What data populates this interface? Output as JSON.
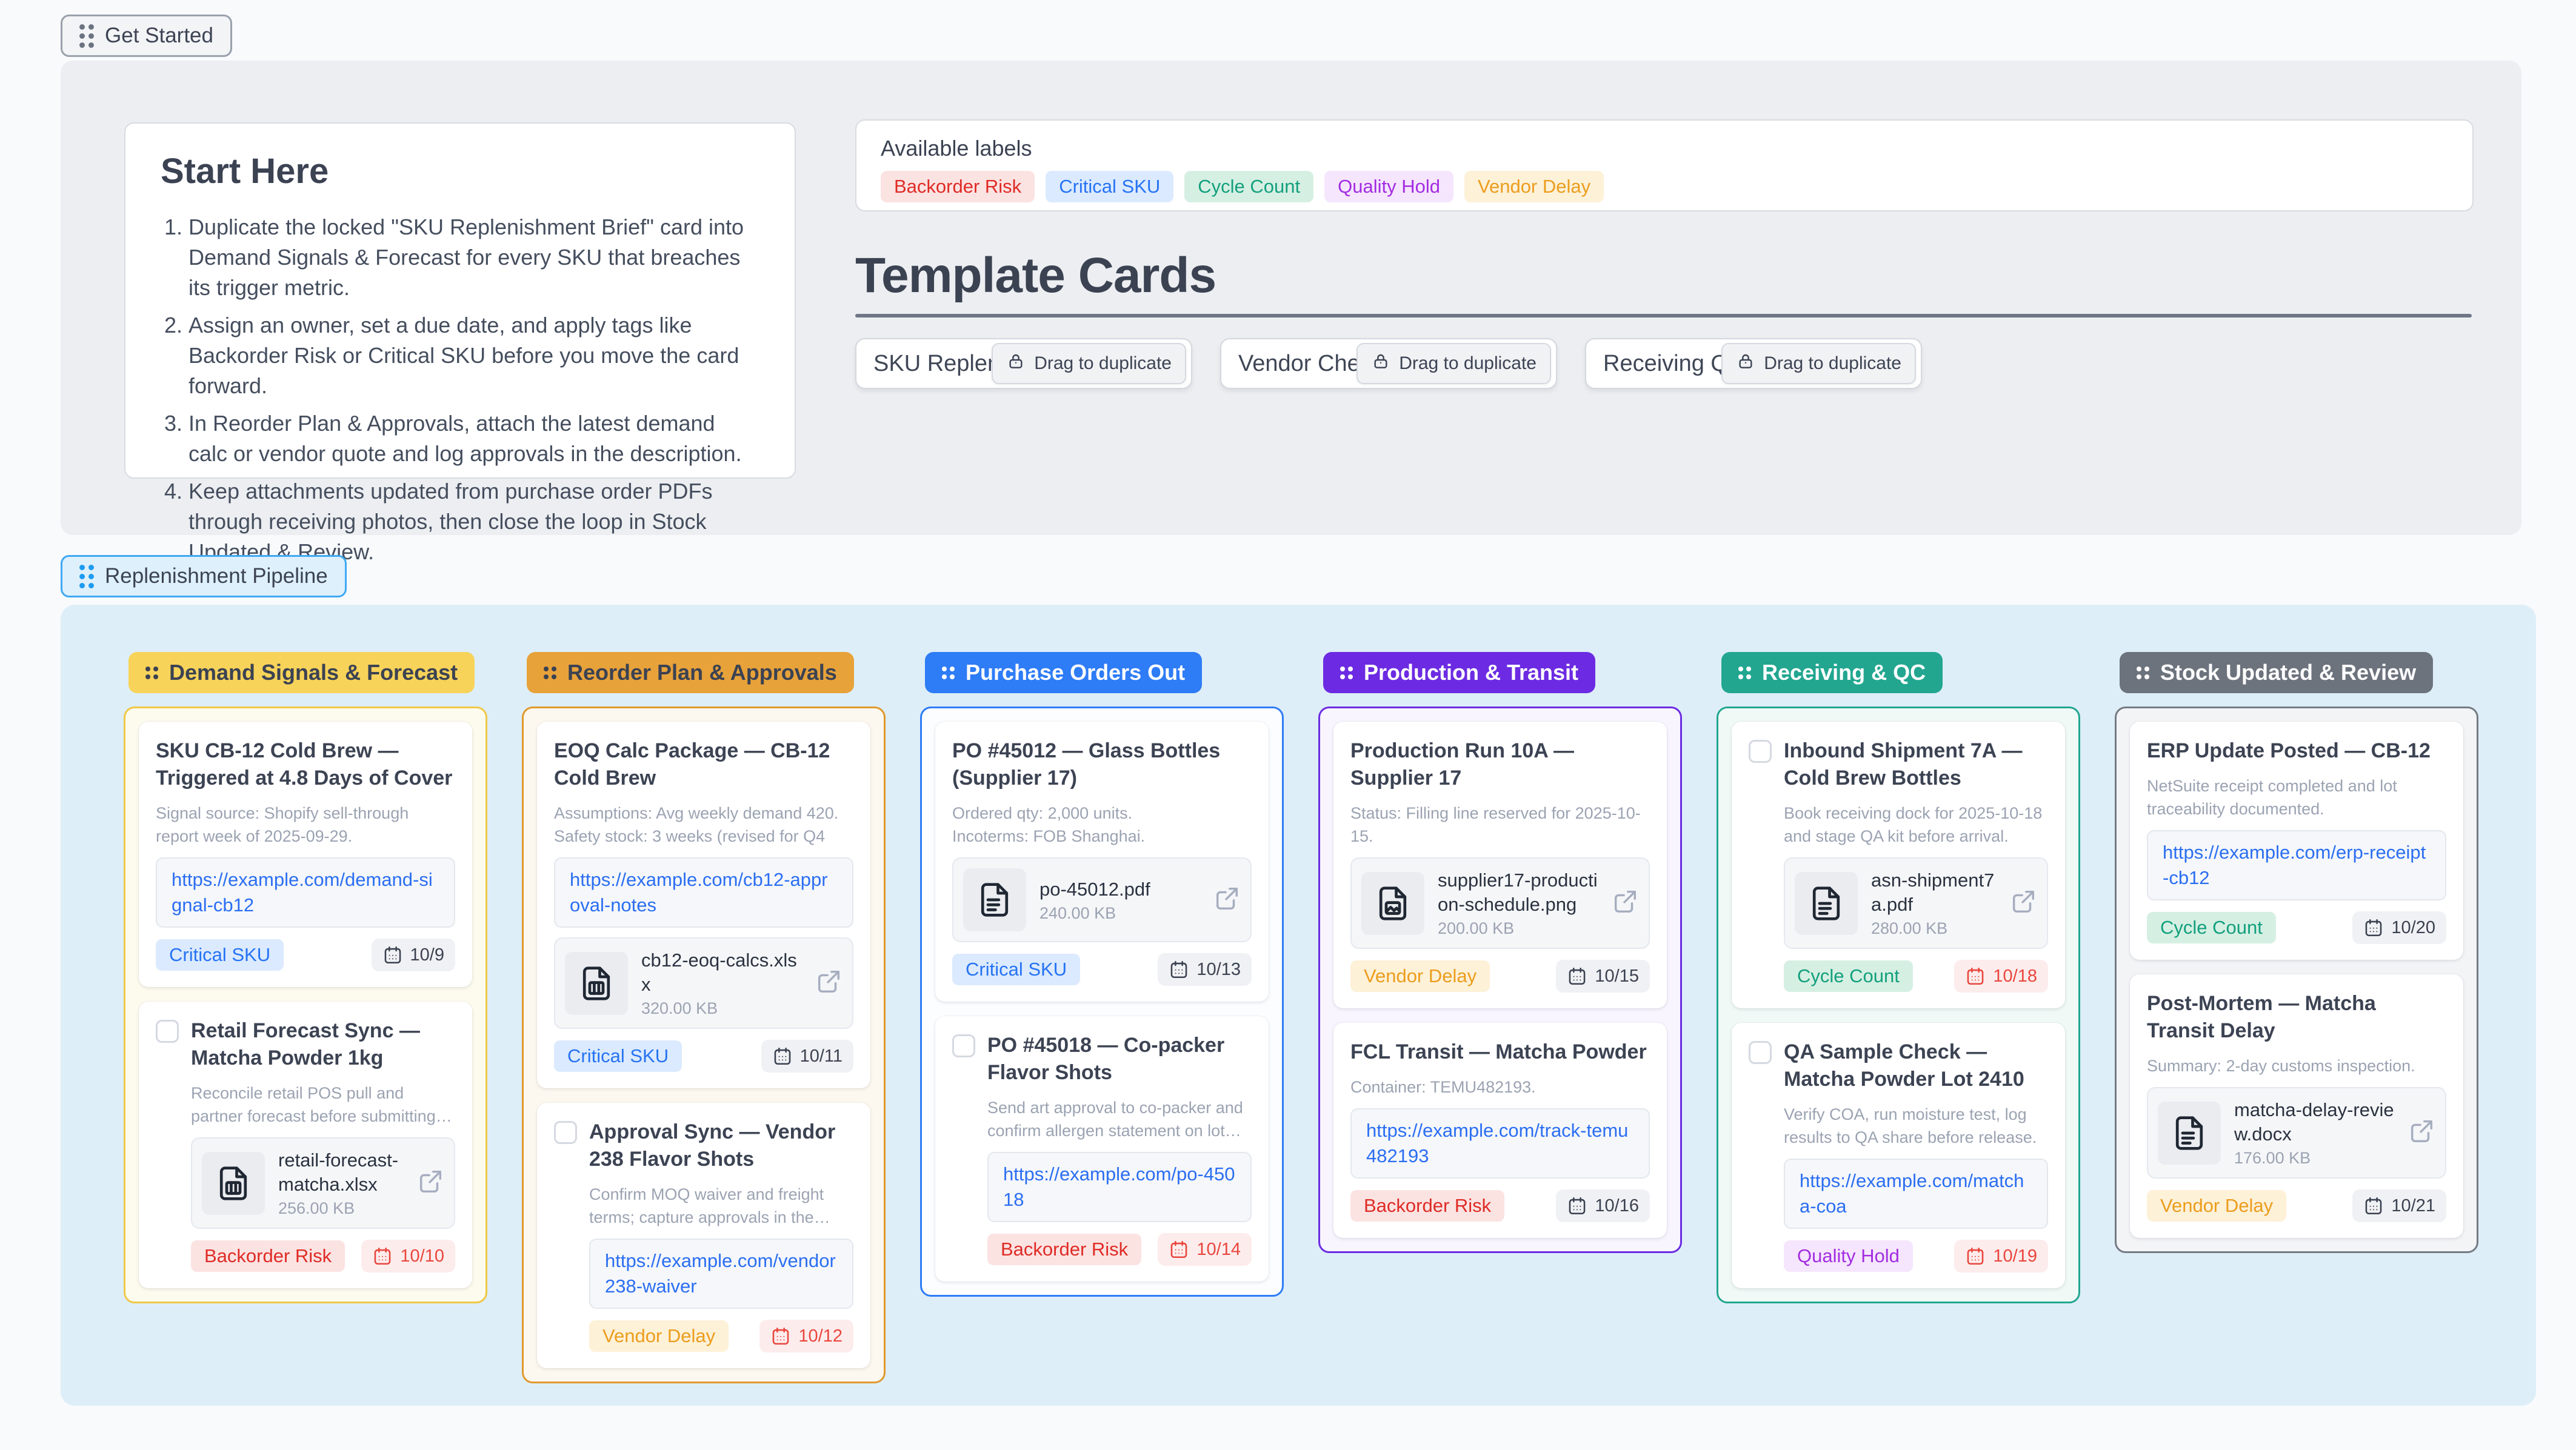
{
  "ui_colors": {
    "page_bg": "#f8fafc",
    "panel_bg": "#eceef1",
    "board_bg": "#ddeef8",
    "link": "#2b6ef2",
    "pipe_bg": "#def0fc",
    "pipe_border": "#3fa9f5"
  },
  "get_started_label": "Get Started",
  "pipeline_badge_label": "Replenishment Pipeline",
  "start_here": {
    "title": "Start Here",
    "steps": [
      "Duplicate the locked \"SKU Replenishment Brief\" card into Demand Signals & Forecast for every SKU that breaches its trigger metric.",
      "Assign an owner, set a due date, and apply tags like Backorder Risk or Critical SKU before you move the card forward.",
      "In Reorder Plan & Approvals, attach the latest demand calc or vendor quote and log approvals in the description.",
      "Keep attachments updated from purchase order PDFs through receiving photos, then close the loop in Stock Updated & Review."
    ]
  },
  "labels_panel": {
    "title": "Available labels",
    "labels": [
      {
        "name": "Backorder Risk",
        "color": "red"
      },
      {
        "name": "Critical SKU",
        "color": "blue"
      },
      {
        "name": "Cycle Count",
        "color": "teal"
      },
      {
        "name": "Quality Hold",
        "color": "purple"
      },
      {
        "name": "Vendor Delay",
        "color": "amber"
      }
    ]
  },
  "templates": {
    "title": "Template Cards",
    "drag_label": "Drag to duplicate",
    "cards": [
      {
        "title": "SKU Replenishment Brief"
      },
      {
        "title": "Vendor Check-In"
      },
      {
        "title": "Receiving QA Log"
      }
    ]
  },
  "board": {
    "columns": [
      {
        "title": "Demand Signals & Forecast",
        "theme": "yellow",
        "cards": [
          {
            "title": "SKU CB-12 Cold Brew — Triggered at 4.8 Days of Cover",
            "checkbox": false,
            "description": "Signal source: Shopify sell-through report week of 2025-09-29.",
            "link": "https://example.com/demand-signal-cb12",
            "label": {
              "name": "Critical SKU",
              "color": "blue"
            },
            "due": {
              "date": "10/9",
              "overdue": false
            }
          },
          {
            "title": "Retail Forecast Sync — Matcha Powder 1kg",
            "checkbox": true,
            "description": "Reconcile retail POS pull and partner forecast before submitting reorder calc ...",
            "attachment": {
              "name": "retail-forecast-matcha.xlsx",
              "size": "256.00 KB",
              "kind": "sheet"
            },
            "label": {
              "name": "Backorder Risk",
              "color": "red"
            },
            "due": {
              "date": "10/10",
              "overdue": true
            }
          }
        ]
      },
      {
        "title": "Reorder Plan & Approvals",
        "theme": "orange",
        "cards": [
          {
            "title": "EOQ Calc Package — CB-12 Cold Brew",
            "checkbox": false,
            "description": "Assumptions: Avg weekly demand 420. Safety stock: 3 weeks (revised for Q4",
            "link": "https://example.com/cb12-approval-notes",
            "attachment": {
              "name": "cb12-eoq-calcs.xlsx",
              "size": "320.00 KB",
              "kind": "sheet"
            },
            "label": {
              "name": "Critical SKU",
              "color": "blue"
            },
            "due": {
              "date": "10/11",
              "overdue": false
            }
          },
          {
            "title": "Approval Sync — Vendor 238 Flavor Shots",
            "checkbox": true,
            "description": "Confirm MOQ waiver and freight terms; capture approvals in the notes once sig ...",
            "link": "https://example.com/vendor238-waiver",
            "label": {
              "name": "Vendor Delay",
              "color": "amber"
            },
            "due": {
              "date": "10/12",
              "overdue": true
            }
          }
        ]
      },
      {
        "title": "Purchase Orders Out",
        "theme": "blue",
        "cards": [
          {
            "title": "PO #45012 — Glass Bottles (Supplier 17)",
            "checkbox": false,
            "description": "Ordered qty: 2,000 units.\nIncoterms: FOB Shanghai.",
            "attachment": {
              "name": "po-45012.pdf",
              "size": "240.00 KB",
              "kind": "text"
            },
            "label": {
              "name": "Critical SKU",
              "color": "blue"
            },
            "due": {
              "date": "10/13",
              "overdue": false
            }
          },
          {
            "title": "PO #45018 — Co-packer Flavor Shots",
            "checkbox": true,
            "description": "Send art approval to co-packer and confirm allergen statement on lot codes.",
            "link": "https://example.com/po-45018",
            "label": {
              "name": "Backorder Risk",
              "color": "red"
            },
            "due": {
              "date": "10/14",
              "overdue": true
            }
          }
        ]
      },
      {
        "title": "Production & Transit",
        "theme": "purple",
        "cards": [
          {
            "title": "Production Run 10A — Supplier 17",
            "checkbox": false,
            "description": "Status: Filling line reserved for 2025-10-15.",
            "attachment": {
              "name": "supplier17-production-schedule.png",
              "size": "200.00 KB",
              "kind": "image"
            },
            "label": {
              "name": "Vendor Delay",
              "color": "amber"
            },
            "due": {
              "date": "10/15",
              "overdue": false
            }
          },
          {
            "title": "FCL Transit — Matcha Powder",
            "checkbox": false,
            "description": "Container: TEMU482193.",
            "link": "https://example.com/track-temu482193",
            "label": {
              "name": "Backorder Risk",
              "color": "red"
            },
            "due": {
              "date": "10/16",
              "overdue": false
            }
          }
        ]
      },
      {
        "title": "Receiving & QC",
        "theme": "teal",
        "cards": [
          {
            "title": "Inbound Shipment 7A — Cold Brew Bottles",
            "checkbox": true,
            "description": "Book receiving dock for 2025-10-18 and stage QA kit before arrival.",
            "attachment": {
              "name": "asn-shipment7a.pdf",
              "size": "280.00 KB",
              "kind": "text"
            },
            "label": {
              "name": "Cycle Count",
              "color": "teal"
            },
            "due": {
              "date": "10/18",
              "overdue": true
            }
          },
          {
            "title": "QA Sample Check — Matcha Powder Lot 2410",
            "checkbox": true,
            "description": "Verify COA, run moisture test, log results to QA share before release.",
            "link": "https://example.com/matcha-coa",
            "label": {
              "name": "Quality Hold",
              "color": "purple"
            },
            "due": {
              "date": "10/19",
              "overdue": true
            }
          }
        ]
      },
      {
        "title": "Stock Updated & Review",
        "theme": "gray",
        "cards": [
          {
            "title": "ERP Update Posted — CB-12",
            "checkbox": false,
            "description": "NetSuite receipt completed and lot traceability documented.",
            "link": "https://example.com/erp-receipt-cb12",
            "label": {
              "name": "Cycle Count",
              "color": "teal"
            },
            "due": {
              "date": "10/20",
              "overdue": false
            }
          },
          {
            "title": "Post-Mortem — Matcha Transit Delay",
            "checkbox": false,
            "description": "Summary: 2-day customs inspection.",
            "attachment": {
              "name": "matcha-delay-review.docx",
              "size": "176.00 KB",
              "kind": "text"
            },
            "label": {
              "name": "Vendor Delay",
              "color": "amber"
            },
            "due": {
              "date": "10/21",
              "overdue": false
            }
          }
        ]
      }
    ]
  },
  "themes": {
    "yellow": {
      "header_bg": "#f8d35a",
      "header_text": "#3b4252",
      "border": "#efc846",
      "column_bg": "#fdfbee"
    },
    "orange": {
      "header_bg": "#e8a23a",
      "header_text": "#3b4252",
      "border": "#e0992c",
      "column_bg": "#fdf8ef"
    },
    "blue": {
      "header_bg": "#2e7cf6",
      "header_text": "#ffffff",
      "border": "#2e7cf6",
      "column_bg": "#fbfdff"
    },
    "purple": {
      "header_bg": "#6c2be2",
      "header_text": "#ffffff",
      "border": "#6c2be2",
      "column_bg": "#f8f5fe"
    },
    "teal": {
      "header_bg": "#22a690",
      "header_text": "#ffffff",
      "border": "#22a690",
      "column_bg": "#f0f9f6"
    },
    "gray": {
      "header_bg": "#6d737d",
      "header_text": "#ffffff",
      "border": "#757b85",
      "column_bg": "#f3f4f6"
    }
  },
  "label_colors": {
    "red": {
      "bg": "#fbe3e2",
      "text": "#df2b25"
    },
    "blue": {
      "bg": "#dbeafe",
      "text": "#2673f4"
    },
    "teal": {
      "bg": "#d6efe3",
      "text": "#12a07d"
    },
    "purple": {
      "bg": "#f5e6fd",
      "text": "#a32ce1"
    },
    "amber": {
      "bg": "#fdf1d8",
      "text": "#ec9d1d"
    }
  },
  "due_colors": {
    "normal": {
      "bg": "#f0f1f4",
      "text": "#3a4150"
    },
    "overdue": {
      "bg": "#fdecec",
      "text": "#e8463d"
    }
  }
}
